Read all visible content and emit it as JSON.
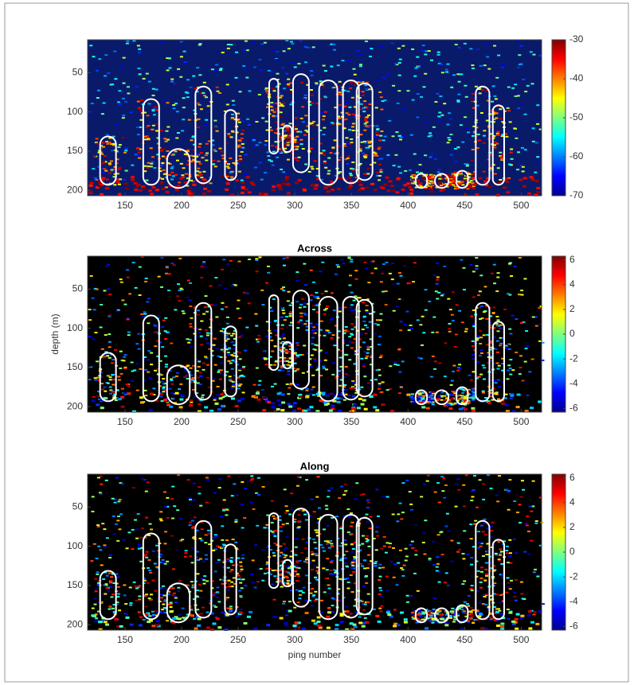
{
  "chart_data": [
    {
      "type": "heatmap",
      "colormap": "jet",
      "xlim": [
        117,
        518
      ],
      "xticks": [
        150,
        200,
        250,
        300,
        350,
        400,
        450,
        500
      ],
      "ylim": [
        8,
        207
      ],
      "yticks": [
        50,
        100,
        150,
        200
      ],
      "colorbar": {
        "lim": [
          -70,
          -30
        ],
        "ticks": [
          -30,
          -40,
          -50,
          -60,
          -70
        ]
      }
    },
    {
      "type": "heatmap",
      "colormap": "jet",
      "title": "Across",
      "ylabel": "depth (m)",
      "xlim": [
        117,
        518
      ],
      "xticks": [
        150,
        200,
        250,
        300,
        350,
        400,
        450,
        500
      ],
      "ylim": [
        8,
        207
      ],
      "yticks": [
        50,
        100,
        150,
        200
      ],
      "colorbar": {
        "lim": [
          -6.3,
          6.3
        ],
        "ticks": [
          6,
          4,
          2,
          0,
          -2,
          -4,
          -6
        ]
      }
    },
    {
      "type": "heatmap",
      "colormap": "jet",
      "title": "Along",
      "xlabel": "ping number",
      "xlim": [
        117,
        518
      ],
      "xticks": [
        150,
        200,
        250,
        300,
        350,
        400,
        450,
        500
      ],
      "ylim": [
        8,
        207
      ],
      "yticks": [
        50,
        100,
        150,
        200
      ],
      "colorbar": {
        "lim": [
          -6.3,
          6.3
        ],
        "ticks": [
          6,
          4,
          2,
          0,
          -2,
          -4,
          -6
        ]
      }
    }
  ]
}
